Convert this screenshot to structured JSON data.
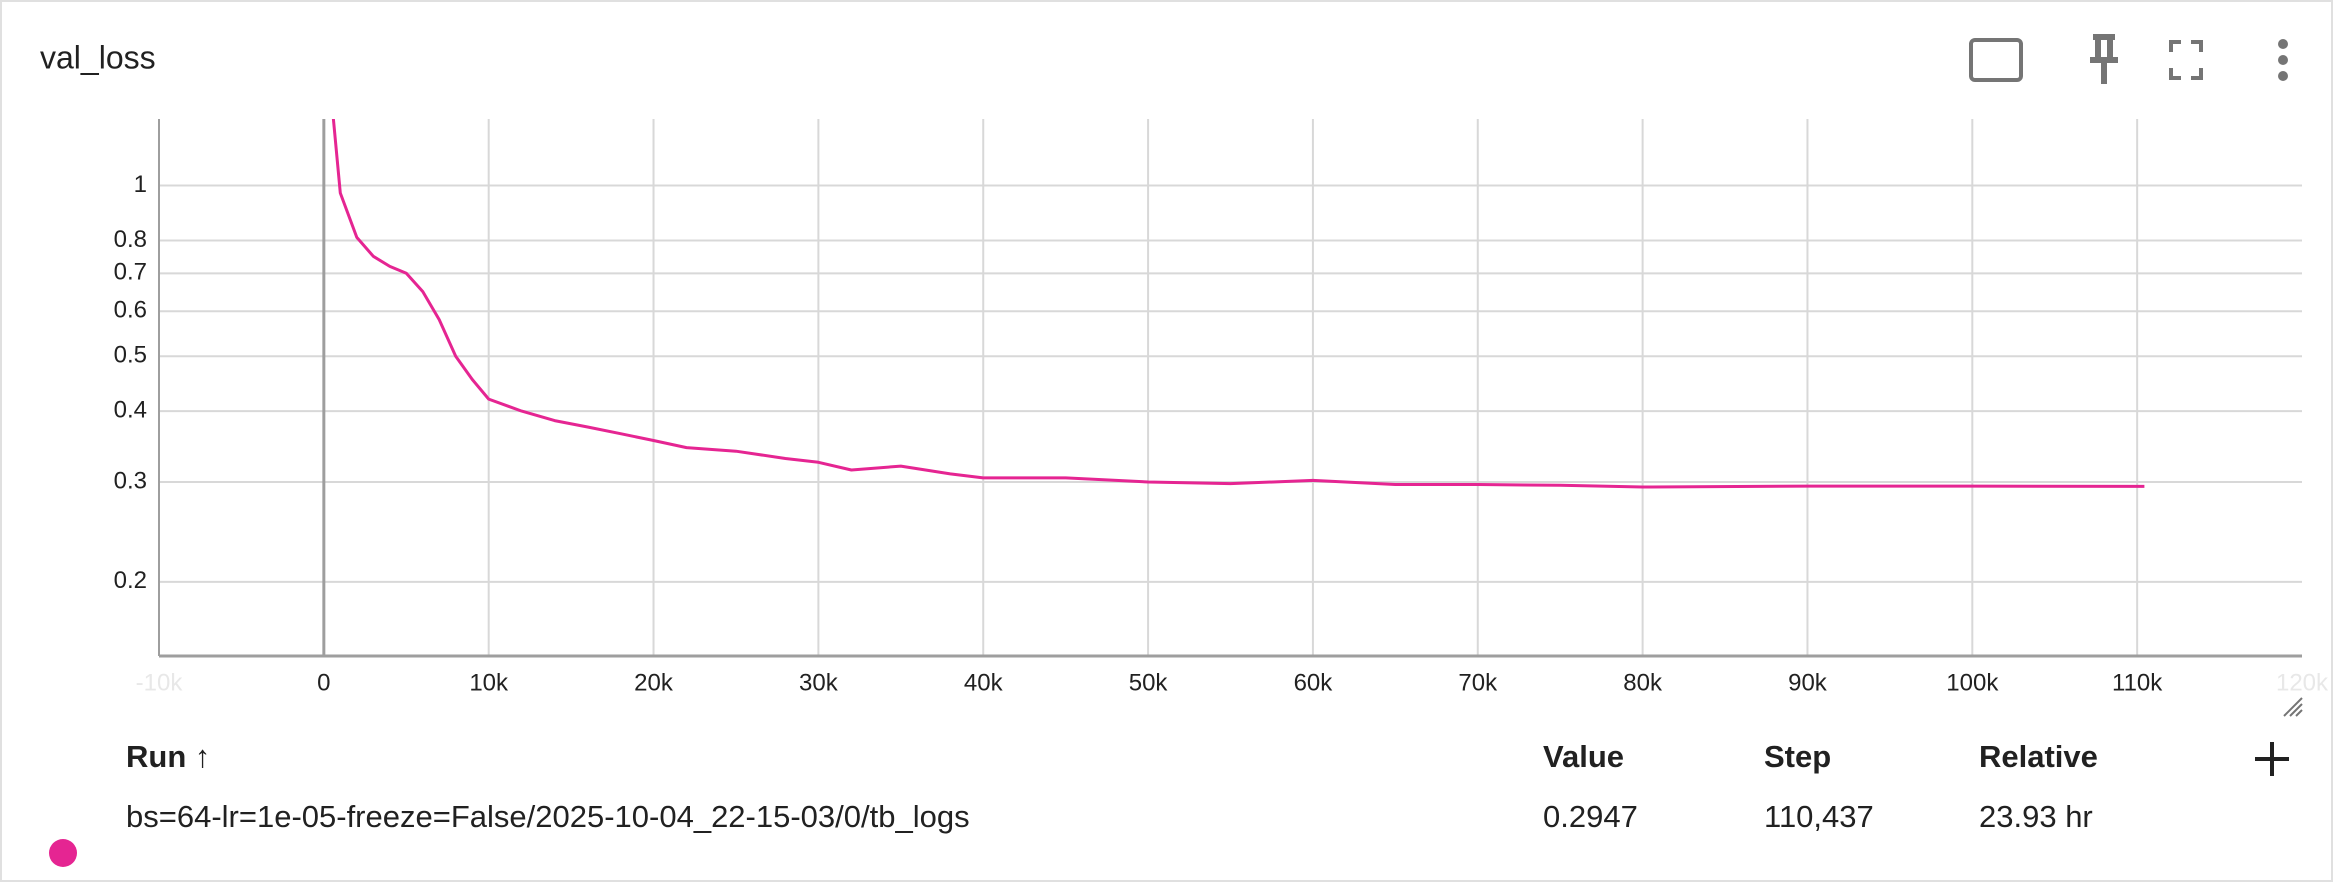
{
  "chart_data": {
    "type": "line",
    "title": "val_loss",
    "color": "#e52592",
    "ylog": true,
    "grid": true,
    "x": [
      300,
      1000,
      2000,
      3000,
      4000,
      5000,
      6000,
      7000,
      8000,
      9000,
      10000,
      12000,
      14000,
      16000,
      18000,
      20000,
      22000,
      25000,
      28000,
      30000,
      32000,
      35000,
      38000,
      40000,
      45000,
      50000,
      55000,
      60000,
      65000,
      70000,
      75000,
      80000,
      90000,
      100000,
      110437
    ],
    "values": [
      1.6,
      0.97,
      0.81,
      0.75,
      0.72,
      0.7,
      0.65,
      0.58,
      0.5,
      0.455,
      0.42,
      0.4,
      0.385,
      0.375,
      0.365,
      0.355,
      0.345,
      0.34,
      0.33,
      0.325,
      0.315,
      0.32,
      0.31,
      0.305,
      0.305,
      0.3,
      0.298,
      0.302,
      0.297,
      0.297,
      0.296,
      0.294,
      0.295,
      0.295,
      0.2947
    ],
    "xlim": [
      -10000,
      120000
    ],
    "ylim": [
      0.148,
      1.31
    ],
    "xticks": [
      {
        "value": -10000,
        "label": "-10k"
      },
      0,
      {
        "value": 10000,
        "label": "10k"
      },
      {
        "value": 20000,
        "label": "20k"
      },
      {
        "value": 30000,
        "label": "30k"
      },
      {
        "value": 40000,
        "label": "40k"
      },
      {
        "value": 50000,
        "label": "50k"
      },
      {
        "value": 60000,
        "label": "60k"
      },
      {
        "value": 70000,
        "label": "70k"
      },
      {
        "value": 80000,
        "label": "80k"
      },
      {
        "value": 90000,
        "label": "90k"
      },
      {
        "value": 100000,
        "label": "100k"
      },
      {
        "value": 110000,
        "label": "110k"
      },
      {
        "value": 120000,
        "label": "120k"
      }
    ],
    "yticks": [
      0.2,
      0.3,
      0.4,
      0.5,
      0.6,
      0.7,
      0.8,
      1
    ]
  },
  "table": {
    "columns": [
      "Run ↑",
      "Value",
      "Step",
      "Relative"
    ],
    "rows": [
      [
        "bs=64-lr=1e-05-freeze=False/2025-10-04_22-15-03/0/tb_logs",
        "0.2947",
        "110,437",
        "23.93 hr"
      ]
    ]
  }
}
